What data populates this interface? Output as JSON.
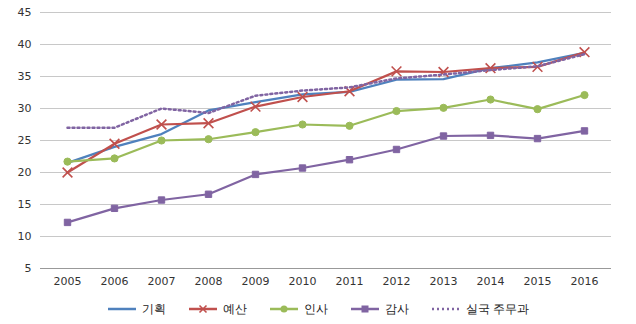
{
  "chart_data": {
    "type": "line",
    "categories": [
      "2005",
      "2006",
      "2007",
      "2008",
      "2009",
      "2010",
      "2011",
      "2012",
      "2013",
      "2014",
      "2015",
      "2016"
    ],
    "ylim": [
      5,
      45
    ],
    "yticks": [
      5,
      10,
      15,
      20,
      25,
      30,
      35,
      40,
      45
    ],
    "grid": true,
    "legend": "bottom",
    "series": [
      {
        "name": "기획",
        "color": "#4f81bd",
        "marker": "none",
        "line_style": "solid",
        "values": [
          21.5,
          24,
          26,
          29.7,
          31,
          32.2,
          32.6,
          34.5,
          34.6,
          36.3,
          37.2,
          38.7
        ]
      },
      {
        "name": "예산",
        "color": "#c0504d",
        "marker": "x",
        "line_style": "solid",
        "values": [
          20,
          24.5,
          27.5,
          27.7,
          30.3,
          31.8,
          32.7,
          35.8,
          35.7,
          36.3,
          36.5,
          38.8
        ]
      },
      {
        "name": "인사",
        "color": "#9bbb59",
        "marker": "circle",
        "line_style": "solid",
        "values": [
          21.7,
          22.2,
          25,
          25.2,
          26.3,
          27.5,
          27.3,
          29.6,
          30.1,
          31.4,
          29.9,
          32.1
        ]
      },
      {
        "name": "감사",
        "color": "#8064a2",
        "marker": "square",
        "line_style": "solid",
        "values": [
          12.2,
          14.4,
          15.7,
          16.6,
          19.7,
          20.7,
          22,
          23.6,
          25.7,
          25.8,
          25.3,
          26.5
        ]
      },
      {
        "name": "실국 주무과",
        "color": "#8064a2",
        "marker": "none",
        "line_style": "dotted",
        "values": [
          27,
          27,
          30,
          29.3,
          32,
          32.8,
          33.3,
          34.7,
          35.3,
          36,
          36.6,
          38.5
        ]
      }
    ]
  }
}
